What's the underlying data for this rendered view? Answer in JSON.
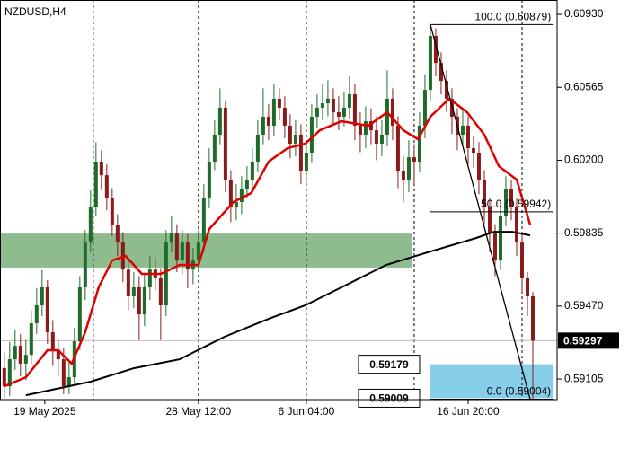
{
  "chart_data": {
    "type": "candlestick",
    "symbol": "NZDUSD,H4",
    "open": [
      0.5916,
      0.59069,
      0.59204,
      0.59271,
      0.59182,
      0.59226,
      0.59384,
      0.59474,
      0.59564,
      0.59339,
      0.59249,
      0.59204,
      0.59069,
      0.59114,
      0.59294,
      0.59564,
      0.59788,
      0.59968,
      0.60193,
      0.60125,
      0.60013,
      0.59878,
      0.59788,
      0.59653,
      0.59519,
      0.59564,
      0.59429,
      0.59564,
      0.59653,
      0.59609,
      0.59474,
      0.59788,
      0.59833,
      0.59698,
      0.59788,
      0.59653,
      0.59698,
      0.59788,
      0.60013,
      0.60193,
      0.60328,
      0.60463,
      0.60103,
      0.59968,
      0.59991,
      0.60058,
      0.60103,
      0.60193,
      0.60328,
      0.60418,
      0.60373,
      0.60508,
      0.60463,
      0.60373,
      0.60283,
      0.60328,
      0.60148,
      0.60238,
      0.60418,
      0.60463,
      0.60485,
      0.60508,
      0.6044,
      0.60418,
      0.60463,
      0.6053,
      0.60373,
      0.60328,
      0.60395,
      0.6035,
      0.60283,
      0.60328,
      0.60508,
      0.60373,
      0.60148,
      0.60103,
      0.60215,
      0.60193,
      0.60373,
      0.60552,
      0.60822,
      0.60687,
      0.60597,
      0.60508,
      0.60418,
      0.60328,
      0.60373,
      0.6026,
      0.60238,
      0.60103,
      0.59968,
      0.59833,
      0.59698,
      0.59923,
      0.60058,
      0.59968,
      0.59788,
      0.59609,
      0.59519
    ],
    "high": [
      0.5924,
      0.5929,
      0.5935,
      0.5933,
      0.593,
      0.5945,
      0.5956,
      0.5965,
      0.596,
      0.594,
      0.593,
      0.5926,
      0.592,
      0.5936,
      0.5962,
      0.5985,
      0.6005,
      0.6029,
      0.6025,
      0.6018,
      0.6006,
      0.5993,
      0.5984,
      0.597,
      0.5964,
      0.5962,
      0.5963,
      0.5972,
      0.5971,
      0.5966,
      0.5985,
      0.5992,
      0.5988,
      0.5985,
      0.5983,
      0.5976,
      0.5985,
      0.6008,
      0.6026,
      0.604,
      0.6056,
      0.605,
      0.6015,
      0.6008,
      0.6012,
      0.6017,
      0.6026,
      0.604,
      0.6056,
      0.6048,
      0.6058,
      0.6056,
      0.6052,
      0.6043,
      0.604,
      0.6038,
      0.603,
      0.6048,
      0.6053,
      0.6058,
      0.606,
      0.6056,
      0.6052,
      0.6054,
      0.6062,
      0.6058,
      0.6044,
      0.6047,
      0.6046,
      0.6042,
      0.604,
      0.6065,
      0.6056,
      0.6042,
      0.6022,
      0.603,
      0.6028,
      0.6044,
      0.6063,
      0.60879,
      0.6086,
      0.6074,
      0.6065,
      0.6056,
      0.6046,
      0.6045,
      0.6042,
      0.6032,
      0.6029,
      0.6015,
      0.6001,
      0.5988,
      0.5999,
      0.6012,
      0.601,
      0.6001,
      0.5983,
      0.5964,
      0.5954
    ],
    "low": [
      0.5901,
      0.5902,
      0.5915,
      0.5912,
      0.591,
      0.5918,
      0.5933,
      0.5942,
      0.5928,
      0.5917,
      0.5912,
      0.5903,
      0.5903,
      0.5908,
      0.5925,
      0.595,
      0.5974,
      0.5992,
      0.6005,
      0.5995,
      0.5982,
      0.5972,
      0.5959,
      0.5945,
      0.5946,
      0.593,
      0.5937,
      0.595,
      0.5955,
      0.593,
      0.5942,
      0.5974,
      0.5964,
      0.5963,
      0.5956,
      0.5958,
      0.5964,
      0.5974,
      0.5996,
      0.6015,
      0.6028,
      0.6004,
      0.5989,
      0.599,
      0.5993,
      0.6001,
      0.6005,
      0.6014,
      0.6028,
      0.603,
      0.6032,
      0.604,
      0.6031,
      0.6021,
      0.6022,
      0.6008,
      0.6009,
      0.6019,
      0.6036,
      0.604,
      0.6042,
      0.6038,
      0.6035,
      0.6037,
      0.6041,
      0.603,
      0.6024,
      0.6026,
      0.6028,
      0.602,
      0.6022,
      0.6027,
      0.603,
      0.6006,
      0.5999,
      0.6004,
      0.6008,
      0.6014,
      0.6031,
      0.605,
      0.6062,
      0.6053,
      0.6044,
      0.6033,
      0.6025,
      0.6027,
      0.6018,
      0.6016,
      0.6003,
      0.5988,
      0.5974,
      0.5962,
      0.5965,
      0.5987,
      0.599,
      0.5972,
      0.5954,
      0.5942,
      0.59004
    ],
    "close": [
      0.59069,
      0.59204,
      0.59271,
      0.59182,
      0.59226,
      0.59384,
      0.59474,
      0.59564,
      0.59339,
      0.59249,
      0.59204,
      0.59069,
      0.59114,
      0.59294,
      0.59564,
      0.59788,
      0.59968,
      0.60193,
      0.60125,
      0.60013,
      0.59878,
      0.59788,
      0.59653,
      0.59519,
      0.59564,
      0.59429,
      0.59564,
      0.59653,
      0.59609,
      0.59474,
      0.59788,
      0.59833,
      0.59698,
      0.59788,
      0.59653,
      0.59698,
      0.59788,
      0.60013,
      0.60193,
      0.60328,
      0.60463,
      0.60103,
      0.59968,
      0.59991,
      0.60058,
      0.60103,
      0.60193,
      0.60328,
      0.60418,
      0.60373,
      0.60508,
      0.60463,
      0.60373,
      0.60283,
      0.60328,
      0.60148,
      0.60238,
      0.60418,
      0.60463,
      0.60485,
      0.60508,
      0.6044,
      0.60418,
      0.60463,
      0.6053,
      0.60373,
      0.60328,
      0.60395,
      0.6035,
      0.60283,
      0.60328,
      0.60508,
      0.60373,
      0.60148,
      0.60103,
      0.60215,
      0.60193,
      0.60373,
      0.60552,
      0.60822,
      0.60687,
      0.60597,
      0.60508,
      0.60418,
      0.60328,
      0.60373,
      0.6026,
      0.60238,
      0.60103,
      0.59968,
      0.59833,
      0.59698,
      0.59923,
      0.60058,
      0.59968,
      0.59788,
      0.59609,
      0.59519,
      0.59297
    ],
    "up_color": "#1f6b2a",
    "down_color": "#8b1a1a",
    "xlim": [
      -0.8,
      102.5
    ],
    "ylim": [
      0.59002,
      0.61002
    ],
    "yticks": [
      {
        "value": 0.6093,
        "label": "0.60930"
      },
      0.60565,
      {
        "value": 0.602,
        "label": "0.60200"
      },
      0.59835,
      {
        "value": 0.5947,
        "label": "0.59470"
      },
      0.59105
    ],
    "xticks": [
      {
        "value": 7.5,
        "label": "19 May 2025"
      },
      {
        "value": 36,
        "label": "28 May 12:00"
      },
      {
        "value": 56,
        "label": "6 Jun 04:00"
      },
      {
        "value": 86,
        "label": "16 Jun 20:00"
      }
    ],
    "separators": [
      16.5,
      36,
      56,
      76,
      96
    ],
    "lines": [
      {
        "color": "#e00000",
        "x": [
          0,
          4,
          8,
          10,
          12.5,
          15,
          17.5,
          20,
          22.5,
          25.5,
          29,
          32.5,
          36,
          38,
          42.5,
          45.8,
          49,
          52.5,
          55.8,
          58.5,
          62.5,
          67.5,
          71,
          74,
          76.7,
          79,
          82.5,
          85.8,
          89,
          91.7,
          95,
          97.5
        ],
        "values": [
          0.59069,
          0.59114,
          0.59249,
          0.59249,
          0.59182,
          0.59339,
          0.59564,
          0.59698,
          0.59721,
          0.59631,
          0.59631,
          0.59676,
          0.59676,
          0.59856,
          0.59991,
          0.60036,
          0.60193,
          0.6026,
          0.60283,
          0.6035,
          0.60395,
          0.60373,
          0.6044,
          0.6035,
          0.60305,
          0.60418,
          0.60508,
          0.6044,
          0.60328,
          0.6017,
          0.60103,
          0.59878
        ]
      },
      {
        "color": "#000000",
        "x": [
          4,
          16,
          24,
          32.5,
          40.8,
          49,
          55.8,
          62.5,
          70.8,
          79,
          87.5,
          90.8,
          94.2,
          97.5
        ],
        "values": [
          0.59024,
          0.59092,
          0.59159,
          0.59204,
          0.59316,
          0.59406,
          0.59474,
          0.59564,
          0.59676,
          0.59743,
          0.59811,
          0.59842,
          0.59842,
          0.59824
        ]
      }
    ],
    "zones": [
      {
        "high": 0.59833,
        "low": 0.59663,
        "x": [
          -0.8,
          75.5
        ],
        "color": "#8fbc8f",
        "labeled": false
      },
      {
        "high": 0.59179,
        "low": 0.59009,
        "x": [
          79,
          101.7
        ],
        "color": "#87ceeb",
        "labeled": true
      }
    ],
    "fibo": {
      "x": [
        79,
        101.7
      ],
      "trend_x": [
        79,
        97.5
      ],
      "color": "#000000",
      "levels": [
        {
          "price": 0.60879,
          "label": "100.0 (0.60879)"
        },
        {
          "price": 0.59942,
          "label": "50.0 (0.59942)"
        },
        {
          "price": 0.59004,
          "label": "0.0 (0.59004)"
        }
      ]
    },
    "last_price": 0.59297
  }
}
